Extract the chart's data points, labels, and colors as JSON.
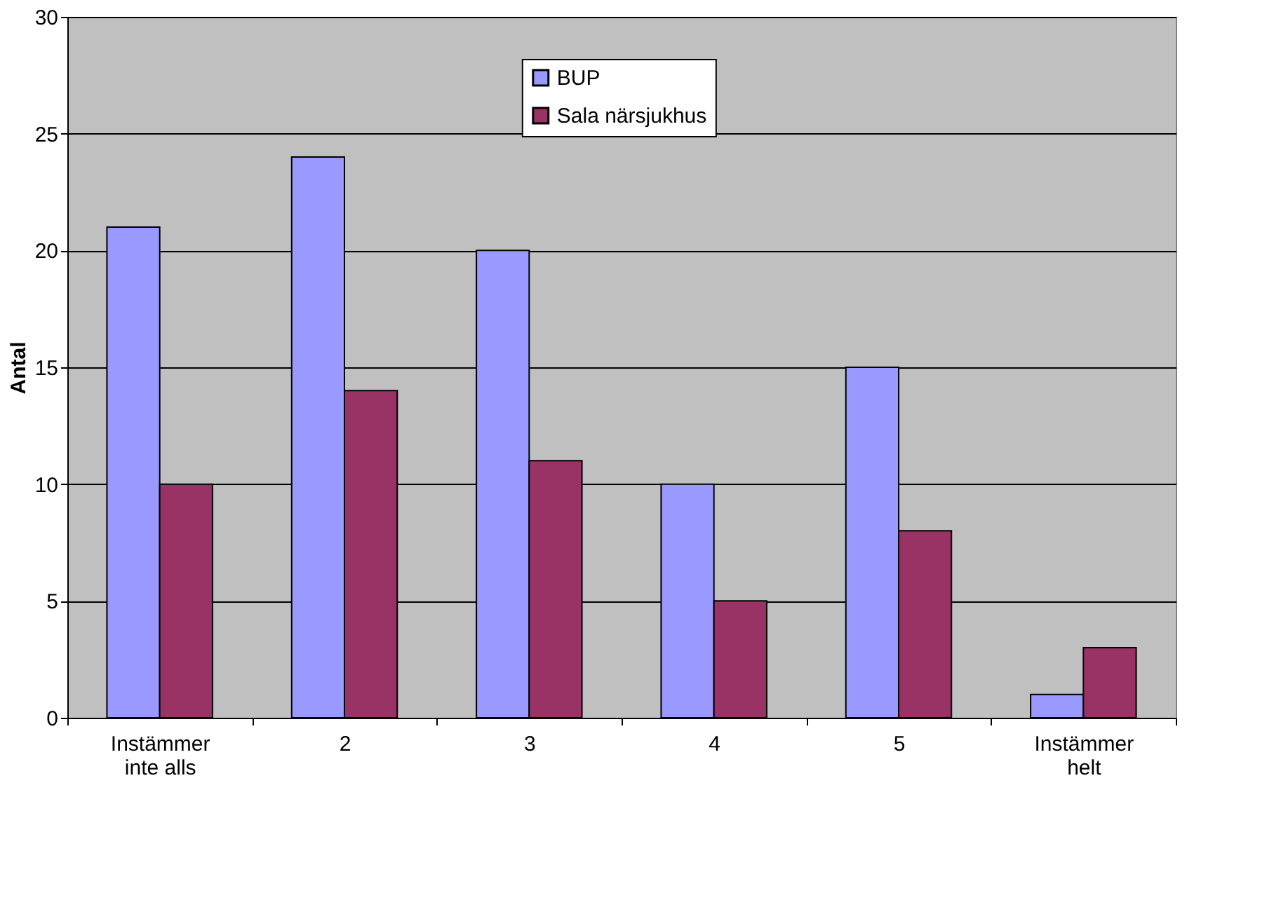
{
  "chart_data": {
    "type": "bar",
    "categories": [
      "Instämmer\ninte alls",
      "2",
      "3",
      "4",
      "5",
      "Instämmer\nhelt"
    ],
    "ylabel": "Antal",
    "series": [
      {
        "name": "BUP",
        "color": "#9999ff",
        "values": [
          21,
          24,
          20,
          10,
          15,
          1
        ]
      },
      {
        "name": "Sala närsjukhus",
        "color": "#993366",
        "values": [
          10,
          14,
          11,
          5,
          8,
          3
        ]
      }
    ],
    "ylim": [
      0,
      30
    ],
    "yticks": [
      0,
      5,
      10,
      15,
      20,
      25,
      30
    ],
    "grid": "y",
    "legend": "top"
  }
}
